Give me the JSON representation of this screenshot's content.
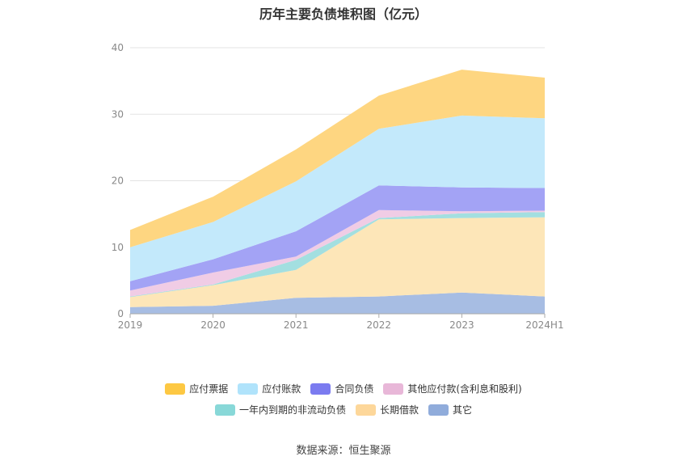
{
  "title": "历年主要负债堆积图（亿元）",
  "source": "数据来源：恒生聚源",
  "chart_data": {
    "type": "area",
    "stacked": true,
    "categories": [
      "2019",
      "2020",
      "2021",
      "2022",
      "2023",
      "2024H1"
    ],
    "ylim": [
      0,
      40
    ],
    "yticks": [
      "0",
      "10",
      "20",
      "30",
      "40"
    ],
    "grid": true,
    "legend_position": "bottom",
    "series": [
      {
        "name": "其它",
        "color": "#a7bde3",
        "values": [
          1.0,
          1.2,
          2.4,
          2.6,
          3.2,
          2.6
        ]
      },
      {
        "name": "长期借款",
        "color": "#fde6b8",
        "values": [
          1.5,
          3.1,
          4.2,
          11.6,
          11.2,
          11.9
        ]
      },
      {
        "name": "一年内到期的非流动负债",
        "color": "#a3dfe0",
        "values": [
          0.1,
          0.1,
          1.5,
          0.2,
          0.7,
          0.8
        ]
      },
      {
        "name": "其他应付款(含利息和股利)",
        "color": "#f0cce5",
        "values": [
          0.9,
          1.8,
          0.5,
          1.2,
          0.3,
          0.2
        ]
      },
      {
        "name": "合同负债",
        "color": "#a3a3f5",
        "values": [
          1.4,
          2.0,
          3.8,
          3.7,
          3.6,
          3.4
        ]
      },
      {
        "name": "应付账款",
        "color": "#c3e9fb",
        "values": [
          5.1,
          5.6,
          7.5,
          8.5,
          10.8,
          10.5
        ]
      },
      {
        "name": "应付票据",
        "color": "#fed681",
        "values": [
          2.6,
          3.8,
          4.8,
          5.0,
          6.9,
          6.1
        ]
      }
    ]
  },
  "legend": {
    "row1": [
      {
        "label": "应付票据",
        "color": "#fdc843"
      },
      {
        "label": "应付账款",
        "color": "#b0e3fb"
      },
      {
        "label": "合同负债",
        "color": "#7b7bf0"
      },
      {
        "label": "其他应付款(含利息和股利)",
        "color": "#e8b7d8"
      }
    ],
    "row2": [
      {
        "label": "一年内到期的非流动负债",
        "color": "#88d8d8"
      },
      {
        "label": "长期借款",
        "color": "#fdd79a"
      },
      {
        "label": "其它",
        "color": "#90acdb"
      }
    ]
  }
}
